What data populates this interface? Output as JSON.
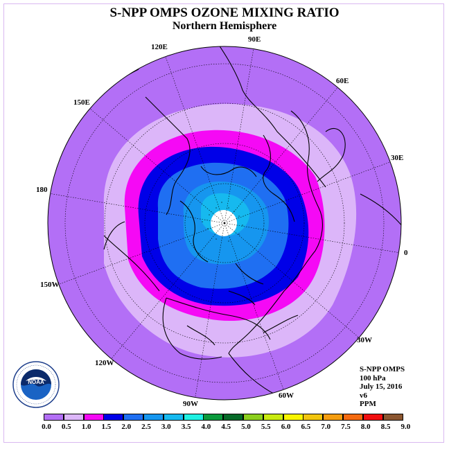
{
  "title": "S-NPP OMPS OZONE MIXING RATIO",
  "subtitle": "Northern Hemisphere",
  "longitude_labels": {
    "e90": "90E",
    "e60": "60E",
    "e30": "30E",
    "zero": "0",
    "w30": "30W",
    "w60": "60W",
    "w90": "90W",
    "w120": "120W",
    "w150": "150W",
    "d180": "180",
    "e150": "150E",
    "e120": "120E"
  },
  "info": {
    "line1": "S-NPP OMPS",
    "line2": "100 hPa",
    "line3": "July 15, 2016",
    "line4": "v6",
    "line5": "PPM"
  },
  "logo": {
    "text": "NOAA",
    "ring_text": "NATIONAL OCEANIC AND ATMOSPHERIC ADMINISTRATION · U.S. DEPARTMENT OF COMMERCE"
  },
  "colorbar": {
    "ticks": [
      "0.0",
      "0.5",
      "1.0",
      "1.5",
      "2.0",
      "2.5",
      "3.0",
      "3.5",
      "4.0",
      "4.5",
      "5.0",
      "5.5",
      "6.0",
      "6.5",
      "7.0",
      "7.5",
      "8.0",
      "8.5",
      "9.0"
    ],
    "colors": [
      "#b36ff6",
      "#dcb6f9",
      "#f509f5",
      "#0000e8",
      "#1f6ff2",
      "#1696ef",
      "#16b9ef",
      "#1ff0e2",
      "#0b9a3c",
      "#066a28",
      "#8ccf1e",
      "#c9ea10",
      "#f9f500",
      "#f2c50e",
      "#f59d10",
      "#f56a10",
      "#f10f10",
      "#8b5630"
    ]
  },
  "colors": {
    "ring_0_5": "#b36ff6",
    "ring_0_5_1_0": "#dcb6f9",
    "ring_1_0_1_5": "#f509f5",
    "ring_1_5_2_0": "#0000e8",
    "ring_2_0_2_5": "#1f6ff2",
    "ring_2_5_3_0": "#1696ef",
    "ring_3_0_3_5": "#16b9ef"
  }
}
